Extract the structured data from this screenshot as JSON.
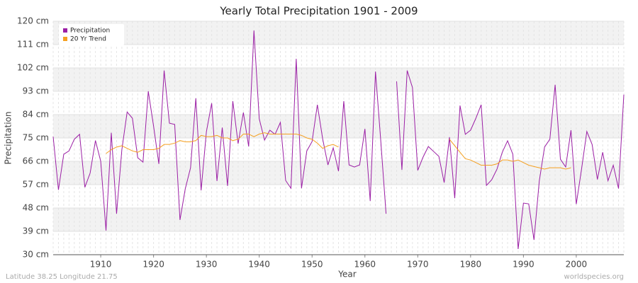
{
  "chart_data": {
    "type": "line",
    "title": "Yearly Total Precipitation 1901 - 2009",
    "x_label": "Year",
    "y_label": "Precipitation",
    "footer_left": "Latitude 38.25 Longitude 21.75",
    "footer_right": "worldspecies.org",
    "legend_position": "upper-left",
    "grid": true,
    "x": [
      1901,
      1902,
      1903,
      1904,
      1905,
      1906,
      1907,
      1908,
      1909,
      1910,
      1911,
      1912,
      1913,
      1914,
      1915,
      1916,
      1917,
      1918,
      1919,
      1920,
      1921,
      1922,
      1923,
      1924,
      1925,
      1926,
      1927,
      1928,
      1929,
      1930,
      1931,
      1932,
      1933,
      1934,
      1935,
      1936,
      1937,
      1938,
      1939,
      1940,
      1941,
      1942,
      1943,
      1944,
      1945,
      1946,
      1947,
      1948,
      1949,
      1950,
      1951,
      1952,
      1953,
      1954,
      1955,
      1956,
      1957,
      1958,
      1959,
      1960,
      1961,
      1962,
      1963,
      1964,
      1965,
      1966,
      1967,
      1968,
      1969,
      1970,
      1971,
      1972,
      1973,
      1974,
      1975,
      1976,
      1977,
      1978,
      1979,
      1980,
      1981,
      1982,
      1983,
      1984,
      1985,
      1986,
      1987,
      1988,
      1989,
      1990,
      1991,
      1992,
      1993,
      1994,
      1995,
      1996,
      1997,
      1998,
      1999,
      2000,
      2001,
      2002,
      2003,
      2004,
      2005,
      2006,
      2007,
      2008,
      2009
    ],
    "series": [
      {
        "name": "Precipitation",
        "color": "#9b1fa5",
        "values": [
          75.5,
          55,
          68.7,
          70,
          74.5,
          76.4,
          56,
          61.5,
          74,
          66,
          39.3,
          77,
          45.8,
          70.5,
          85,
          82.6,
          67.4,
          65.7,
          93,
          79.6,
          65,
          101,
          80.7,
          80.2,
          43.4,
          55.4,
          63.5,
          90.3,
          54.8,
          77.4,
          88.4,
          58.4,
          79,
          56.5,
          89.2,
          72.8,
          84.8,
          71.7,
          116.4,
          82.4,
          74.2,
          78,
          76.4,
          81,
          58.6,
          55.6,
          105.5,
          55.6,
          70,
          73.6,
          87.8,
          74.7,
          64.6,
          71.2,
          62.2,
          89.2,
          64.6,
          63.8,
          64.6,
          78.5,
          50.7,
          100.6,
          73.9,
          45.8,
          null,
          96.8,
          62.7,
          101,
          94.4,
          62.5,
          67.6,
          71.7,
          69.8,
          67.9,
          57.8,
          75.3,
          51.8,
          87.5,
          76.4,
          78,
          82.6,
          87.8,
          56.7,
          58.9,
          63,
          69.5,
          73.9,
          68.7,
          32.2,
          49.9,
          49.6,
          35.7,
          58.4,
          71.5,
          74.5,
          95.5,
          66.8,
          63.8,
          78,
          49.5,
          63,
          77.5,
          72.5,
          59,
          69.5,
          58.5,
          64.5,
          55.5,
          91.7
        ]
      },
      {
        "name": "20 Yr Trend",
        "color": "#f5a020",
        "values": [
          null,
          null,
          null,
          null,
          null,
          null,
          null,
          null,
          null,
          null,
          69,
          70.5,
          71.5,
          72,
          71,
          70,
          69.5,
          70.5,
          70.5,
          70.5,
          71,
          72.5,
          72.5,
          73,
          74,
          73.5,
          73.5,
          74,
          76,
          75.5,
          75.5,
          76,
          75,
          75,
          74,
          74.5,
          76.5,
          76.5,
          75.5,
          76.5,
          77,
          76.5,
          76.5,
          76.5,
          76.5,
          76.5,
          76.5,
          76,
          75,
          74.5,
          73,
          71,
          72,
          72.5,
          71.5,
          null,
          null,
          null,
          null,
          null,
          null,
          null,
          null,
          null,
          null,
          null,
          null,
          null,
          null,
          null,
          null,
          null,
          null,
          null,
          null,
          74.5,
          72,
          69.5,
          67,
          66.5,
          65.5,
          64.5,
          64.5,
          64.5,
          65,
          66.5,
          66.5,
          66,
          66.5,
          65.5,
          64.5,
          64,
          63.5,
          63,
          63.5,
          63.5,
          63.5,
          63,
          63.5,
          null,
          null,
          null,
          null,
          null,
          null,
          null,
          null,
          null,
          null
        ]
      }
    ],
    "xlim": [
      1901,
      2009
    ],
    "xticks": [
      1910,
      1920,
      1930,
      1940,
      1950,
      1960,
      1970,
      1980,
      1990,
      2000
    ],
    "ylim": [
      30,
      120
    ],
    "yticks": [
      {
        "value": 30,
        "label": "30 cm"
      },
      {
        "value": 39,
        "label": "39 cm"
      },
      {
        "value": 48,
        "label": "48 cm"
      },
      {
        "value": 57,
        "label": "57 cm"
      },
      {
        "value": 66,
        "label": "66 cm"
      },
      {
        "value": 75,
        "label": "75 cm"
      },
      {
        "value": 84,
        "label": "84 cm"
      },
      {
        "value": 93,
        "label": "93 cm"
      },
      {
        "value": 102,
        "label": "102 cm"
      },
      {
        "value": 111,
        "label": "111 cm"
      },
      {
        "value": 120,
        "label": "120 cm"
      }
    ]
  }
}
